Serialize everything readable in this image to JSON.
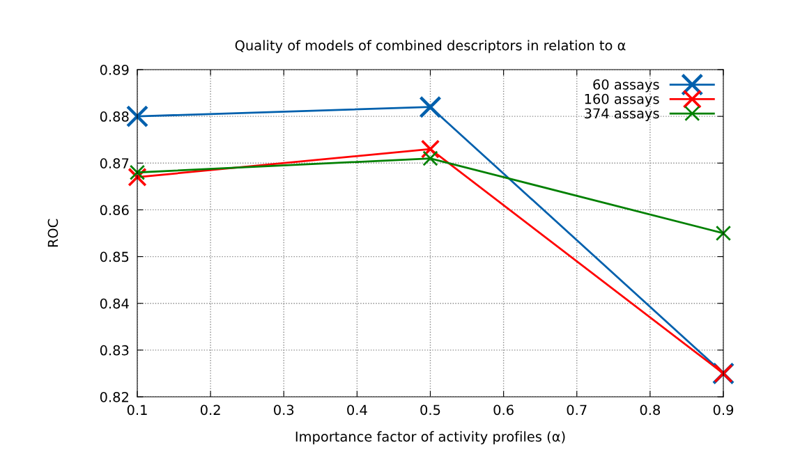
{
  "chart_data": {
    "type": "line",
    "title": "Quality of models of combined descriptors in relation to α",
    "xlabel": "Importance factor of activity profiles (α)",
    "ylabel": "ROC",
    "x": [
      0.1,
      0.5,
      0.9
    ],
    "series": [
      {
        "name": "60 assays",
        "color": "#0060ad",
        "values": [
          0.88,
          0.882,
          0.825
        ]
      },
      {
        "name": "160 assays",
        "color": "#ff0000",
        "values": [
          0.867,
          0.873,
          0.825
        ]
      },
      {
        "name": "374 assays",
        "color": "#008000",
        "values": [
          0.868,
          0.871,
          0.855
        ]
      }
    ],
    "xlim": [
      0.1,
      0.9
    ],
    "xticks": [
      0.1,
      0.2,
      0.3,
      0.4,
      0.5,
      0.6,
      0.7,
      0.8,
      0.9
    ],
    "ylim": [
      0.82,
      0.89
    ],
    "yticks": [
      0.82,
      0.83,
      0.84,
      0.85,
      0.86,
      0.87,
      0.88,
      0.89
    ],
    "grid": true,
    "legend": "top right",
    "marker": "cross",
    "line_style": "solid"
  }
}
